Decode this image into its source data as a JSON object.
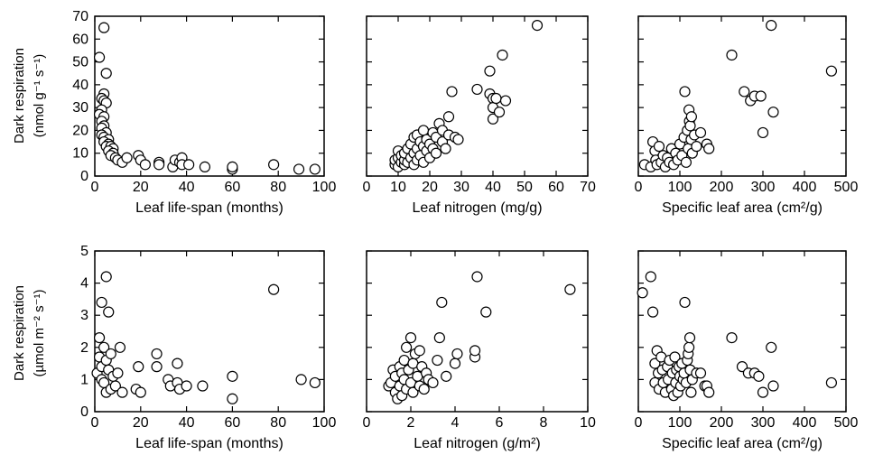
{
  "rows": [
    {
      "ylabel_line1": "Dark respiration",
      "ylabel_line2": "(nmol g⁻¹ s⁻¹)"
    },
    {
      "ylabel_line1": "Dark respiration",
      "ylabel_line2": "(µmol m⁻² s⁻¹)"
    }
  ],
  "chart_data": [
    {
      "type": "scatter",
      "title": "",
      "xlabel": "Leaf life-span (months)",
      "ylabel": "Dark respiration (nmol g⁻¹ s⁻¹)",
      "xlim": [
        0,
        100
      ],
      "ylim": [
        0,
        70
      ],
      "xticks": [
        0,
        20,
        40,
        60,
        80,
        100
      ],
      "yticks": [
        0,
        10,
        20,
        30,
        40,
        50,
        60,
        70
      ],
      "points": [
        [
          2,
          52
        ],
        [
          4,
          65
        ],
        [
          4,
          36
        ],
        [
          5,
          45
        ],
        [
          3,
          34
        ],
        [
          4,
          33
        ],
        [
          5,
          32
        ],
        [
          3,
          29
        ],
        [
          2,
          27
        ],
        [
          4,
          26
        ],
        [
          3,
          24
        ],
        [
          4,
          22
        ],
        [
          3,
          21
        ],
        [
          5,
          19
        ],
        [
          3,
          18
        ],
        [
          4,
          17
        ],
        [
          6,
          16
        ],
        [
          4,
          15
        ],
        [
          6,
          14
        ],
        [
          5,
          13
        ],
        [
          7,
          13
        ],
        [
          8,
          12
        ],
        [
          6,
          11
        ],
        [
          8,
          10
        ],
        [
          7,
          9
        ],
        [
          9,
          8
        ],
        [
          10,
          7
        ],
        [
          12,
          6
        ],
        [
          14,
          8
        ],
        [
          19,
          9
        ],
        [
          20,
          7
        ],
        [
          22,
          5
        ],
        [
          28,
          6
        ],
        [
          28,
          5
        ],
        [
          34,
          4
        ],
        [
          35,
          7
        ],
        [
          37,
          6
        ],
        [
          38,
          8
        ],
        [
          38,
          5
        ],
        [
          41,
          5
        ],
        [
          48,
          4
        ],
        [
          60,
          3
        ],
        [
          60,
          4
        ],
        [
          78,
          5
        ],
        [
          89,
          3
        ],
        [
          96,
          3
        ]
      ]
    },
    {
      "type": "scatter",
      "title": "",
      "xlabel": "Leaf nitrogen (mg/g)",
      "ylabel": "Dark respiration (nmol g⁻¹ s⁻¹)",
      "xlim": [
        0,
        70
      ],
      "ylim": [
        0,
        70
      ],
      "xticks": [
        0,
        10,
        20,
        30,
        40,
        50,
        60,
        70
      ],
      "yticks": [
        0,
        10,
        20,
        30,
        40,
        50,
        60,
        70
      ],
      "points": [
        [
          9,
          5
        ],
        [
          9,
          7
        ],
        [
          10,
          4
        ],
        [
          10,
          8
        ],
        [
          10,
          11
        ],
        [
          11,
          6
        ],
        [
          11,
          9
        ],
        [
          12,
          5
        ],
        [
          12,
          7
        ],
        [
          12,
          10
        ],
        [
          13,
          6
        ],
        [
          13,
          12
        ],
        [
          14,
          8
        ],
        [
          14,
          14
        ],
        [
          15,
          5
        ],
        [
          15,
          10
        ],
        [
          15,
          17
        ],
        [
          16,
          7
        ],
        [
          16,
          12
        ],
        [
          16,
          18
        ],
        [
          17,
          9
        ],
        [
          17,
          15
        ],
        [
          18,
          6
        ],
        [
          18,
          13
        ],
        [
          18,
          20
        ],
        [
          19,
          11
        ],
        [
          19,
          16
        ],
        [
          20,
          8
        ],
        [
          20,
          14
        ],
        [
          21,
          19
        ],
        [
          21,
          12
        ],
        [
          22,
          10
        ],
        [
          22,
          17
        ],
        [
          23,
          23
        ],
        [
          24,
          15
        ],
        [
          24,
          20
        ],
        [
          25,
          12
        ],
        [
          26,
          18
        ],
        [
          26,
          26
        ],
        [
          27,
          37
        ],
        [
          28,
          17
        ],
        [
          29,
          16
        ],
        [
          35,
          38
        ],
        [
          39,
          46
        ],
        [
          39,
          36
        ],
        [
          40,
          34
        ],
        [
          40,
          30
        ],
        [
          40,
          25
        ],
        [
          41,
          34
        ],
        [
          42,
          28
        ],
        [
          43,
          53
        ],
        [
          44,
          33
        ],
        [
          54,
          66
        ]
      ]
    },
    {
      "type": "scatter",
      "title": "",
      "xlabel": "Specific leaf area (cm²/g)",
      "ylabel": "Dark respiration (nmol g⁻¹ s⁻¹)",
      "xlim": [
        0,
        500
      ],
      "ylim": [
        0,
        70
      ],
      "xticks": [
        0,
        100,
        200,
        300,
        400,
        500
      ],
      "yticks": [
        0,
        10,
        20,
        30,
        40,
        50,
        60,
        70
      ],
      "points": [
        [
          15,
          5
        ],
        [
          30,
          4
        ],
        [
          35,
          15
        ],
        [
          40,
          11
        ],
        [
          42,
          7
        ],
        [
          45,
          5
        ],
        [
          50,
          13
        ],
        [
          55,
          6
        ],
        [
          60,
          9
        ],
        [
          65,
          4
        ],
        [
          70,
          8
        ],
        [
          75,
          6
        ],
        [
          80,
          12
        ],
        [
          85,
          5
        ],
        [
          90,
          10
        ],
        [
          95,
          7
        ],
        [
          100,
          14
        ],
        [
          105,
          9
        ],
        [
          110,
          17
        ],
        [
          112,
          37
        ],
        [
          115,
          6
        ],
        [
          118,
          20
        ],
        [
          120,
          12
        ],
        [
          122,
          29
        ],
        [
          123,
          24
        ],
        [
          125,
          22
        ],
        [
          127,
          16
        ],
        [
          128,
          26
        ],
        [
          130,
          10
        ],
        [
          135,
          18
        ],
        [
          140,
          13
        ],
        [
          150,
          19
        ],
        [
          165,
          14
        ],
        [
          170,
          12
        ],
        [
          225,
          53
        ],
        [
          255,
          37
        ],
        [
          270,
          33
        ],
        [
          280,
          35
        ],
        [
          295,
          35
        ],
        [
          300,
          19
        ],
        [
          320,
          66
        ],
        [
          325,
          28
        ],
        [
          465,
          46
        ]
      ]
    },
    {
      "type": "scatter",
      "title": "",
      "xlabel": "Leaf life-span (months)",
      "ylabel": "Dark respiration (µmol m⁻² s⁻¹)",
      "xlim": [
        0,
        100
      ],
      "ylim": [
        0,
        5
      ],
      "xticks": [
        0,
        20,
        40,
        60,
        80,
        100
      ],
      "yticks": [
        0,
        1,
        2,
        3,
        4,
        5
      ],
      "points": [
        [
          1,
          1.2
        ],
        [
          2,
          2.3
        ],
        [
          2,
          1.7
        ],
        [
          3,
          1.4
        ],
        [
          3,
          3.4
        ],
        [
          3,
          1.0
        ],
        [
          4,
          2.0
        ],
        [
          4,
          0.9
        ],
        [
          5,
          1.6
        ],
        [
          5,
          0.6
        ],
        [
          5,
          4.2
        ],
        [
          6,
          3.1
        ],
        [
          6,
          1.3
        ],
        [
          7,
          1.8
        ],
        [
          7,
          0.7
        ],
        [
          8,
          1.1
        ],
        [
          9,
          0.8
        ],
        [
          10,
          1.2
        ],
        [
          11,
          2.0
        ],
        [
          12,
          0.6
        ],
        [
          18,
          0.7
        ],
        [
          19,
          1.4
        ],
        [
          20,
          0.6
        ],
        [
          27,
          1.4
        ],
        [
          27,
          1.8
        ],
        [
          32,
          1.0
        ],
        [
          33,
          0.8
        ],
        [
          36,
          1.5
        ],
        [
          36,
          0.9
        ],
        [
          37,
          0.7
        ],
        [
          40,
          0.8
        ],
        [
          47,
          0.8
        ],
        [
          60,
          1.1
        ],
        [
          60,
          0.4
        ],
        [
          78,
          3.8
        ],
        [
          90,
          1.0
        ],
        [
          96,
          0.9
        ]
      ]
    },
    {
      "type": "scatter",
      "title": "",
      "xlabel": "Leaf nitrogen (g/m²)",
      "ylabel": "Dark respiration (µmol m⁻² s⁻¹)",
      "xlim": [
        0,
        10
      ],
      "ylim": [
        0,
        5
      ],
      "xticks": [
        0,
        2,
        4,
        6,
        8,
        10
      ],
      "yticks": [
        0,
        1,
        2,
        3,
        4,
        5
      ],
      "points": [
        [
          1.0,
          0.8
        ],
        [
          1.1,
          0.9
        ],
        [
          1.2,
          1.3
        ],
        [
          1.3,
          0.6
        ],
        [
          1.3,
          1.1
        ],
        [
          1.4,
          0.4
        ],
        [
          1.5,
          0.8
        ],
        [
          1.5,
          1.4
        ],
        [
          1.6,
          0.5
        ],
        [
          1.6,
          1.2
        ],
        [
          1.7,
          1.0
        ],
        [
          1.7,
          1.6
        ],
        [
          1.8,
          0.7
        ],
        [
          1.8,
          2.0
        ],
        [
          1.9,
          1.3
        ],
        [
          2.0,
          0.9
        ],
        [
          2.0,
          2.3
        ],
        [
          2.1,
          1.5
        ],
        [
          2.1,
          0.6
        ],
        [
          2.2,
          1.8
        ],
        [
          2.3,
          1.1
        ],
        [
          2.4,
          0.8
        ],
        [
          2.4,
          1.9
        ],
        [
          2.5,
          1.4
        ],
        [
          2.6,
          0.7
        ],
        [
          2.7,
          1.2
        ],
        [
          2.8,
          1.0
        ],
        [
          3.0,
          0.9
        ],
        [
          3.2,
          1.6
        ],
        [
          3.3,
          2.3
        ],
        [
          3.4,
          3.4
        ],
        [
          3.6,
          1.1
        ],
        [
          4.0,
          1.5
        ],
        [
          4.1,
          1.8
        ],
        [
          4.9,
          1.7
        ],
        [
          4.9,
          1.9
        ],
        [
          5.0,
          4.2
        ],
        [
          5.4,
          3.1
        ],
        [
          9.2,
          3.8
        ]
      ]
    },
    {
      "type": "scatter",
      "title": "",
      "xlabel": "Specific leaf area (cm²/g)",
      "ylabel": "Dark respiration (µmol m⁻² s⁻¹)",
      "xlim": [
        0,
        500
      ],
      "ylim": [
        0,
        5
      ],
      "xticks": [
        0,
        100,
        200,
        300,
        400,
        500
      ],
      "yticks": [
        0,
        1,
        2,
        3,
        4,
        5
      ],
      "points": [
        [
          10,
          3.7
        ],
        [
          30,
          4.2
        ],
        [
          35,
          3.1
        ],
        [
          40,
          1.5
        ],
        [
          40,
          0.9
        ],
        [
          45,
          1.9
        ],
        [
          48,
          1.2
        ],
        [
          50,
          0.7
        ],
        [
          55,
          1.7
        ],
        [
          58,
          1.3
        ],
        [
          60,
          0.9
        ],
        [
          65,
          0.6
        ],
        [
          70,
          1.4
        ],
        [
          72,
          1.0
        ],
        [
          75,
          1.6
        ],
        [
          80,
          0.7
        ],
        [
          82,
          1.2
        ],
        [
          85,
          0.5
        ],
        [
          88,
          1.7
        ],
        [
          90,
          0.9
        ],
        [
          92,
          1.3
        ],
        [
          95,
          0.6
        ],
        [
          98,
          1.4
        ],
        [
          100,
          1.1
        ],
        [
          102,
          0.8
        ],
        [
          105,
          1.5
        ],
        [
          108,
          1.0
        ],
        [
          110,
          1.2
        ],
        [
          112,
          3.4
        ],
        [
          115,
          0.9
        ],
        [
          118,
          1.6
        ],
        [
          120,
          1.8
        ],
        [
          122,
          2.0
        ],
        [
          124,
          2.3
        ],
        [
          125,
          1.3
        ],
        [
          127,
          0.6
        ],
        [
          130,
          1.0
        ],
        [
          140,
          1.2
        ],
        [
          150,
          1.2
        ],
        [
          160,
          0.8
        ],
        [
          165,
          0.8
        ],
        [
          170,
          0.6
        ],
        [
          225,
          2.3
        ],
        [
          250,
          1.4
        ],
        [
          265,
          1.2
        ],
        [
          280,
          1.2
        ],
        [
          290,
          1.1
        ],
        [
          300,
          0.6
        ],
        [
          320,
          2.0
        ],
        [
          325,
          0.8
        ],
        [
          465,
          0.9
        ]
      ]
    }
  ]
}
